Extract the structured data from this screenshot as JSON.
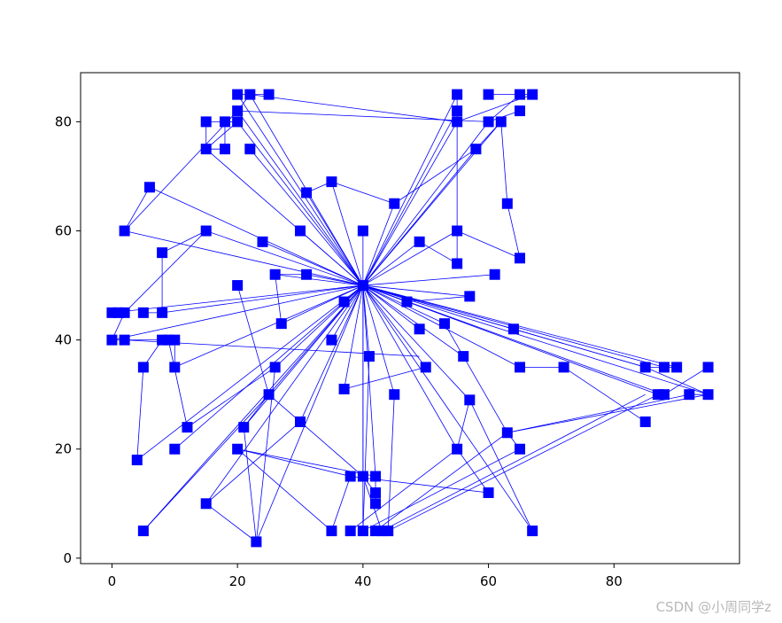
{
  "chart_data": {
    "type": "scatter",
    "title": "",
    "xlabel": "",
    "ylabel": "",
    "xlim": [
      -5,
      100
    ],
    "ylim": [
      -1,
      89
    ],
    "x_ticks": [
      0,
      20,
      40,
      60,
      80
    ],
    "y_ticks": [
      0,
      20,
      40,
      60,
      80
    ],
    "x_tick_labels": [
      "0",
      "20",
      "40",
      "60",
      "80"
    ],
    "y_tick_labels": [
      "0",
      "20",
      "40",
      "60",
      "80"
    ],
    "grid": false,
    "legend": "none",
    "marker": "square",
    "color": "#0000ff",
    "points": [
      [
        40,
        50
      ],
      [
        20,
        85
      ],
      [
        22,
        85
      ],
      [
        25,
        85
      ],
      [
        20,
        82
      ],
      [
        15,
        80
      ],
      [
        18,
        80
      ],
      [
        20,
        80
      ],
      [
        15,
        75
      ],
      [
        18,
        75
      ],
      [
        22,
        75
      ],
      [
        55,
        85
      ],
      [
        60,
        85
      ],
      [
        65,
        85
      ],
      [
        67,
        85
      ],
      [
        55,
        82
      ],
      [
        65,
        82
      ],
      [
        55,
        80
      ],
      [
        60,
        80
      ],
      [
        62,
        80
      ],
      [
        58,
        75
      ],
      [
        6,
        68
      ],
      [
        31,
        67
      ],
      [
        35,
        69
      ],
      [
        45,
        65
      ],
      [
        63,
        65
      ],
      [
        2,
        60
      ],
      [
        15,
        60
      ],
      [
        30,
        60
      ],
      [
        40,
        60
      ],
      [
        55,
        60
      ],
      [
        24,
        58
      ],
      [
        49,
        58
      ],
      [
        8,
        56
      ],
      [
        65,
        55
      ],
      [
        55,
        54
      ],
      [
        26,
        52
      ],
      [
        31,
        52
      ],
      [
        61,
        52
      ],
      [
        20,
        50
      ],
      [
        57,
        48
      ],
      [
        37,
        47
      ],
      [
        47,
        47
      ],
      [
        0,
        45
      ],
      [
        1,
        45
      ],
      [
        2,
        45
      ],
      [
        5,
        45
      ],
      [
        8,
        45
      ],
      [
        27,
        43
      ],
      [
        53,
        43
      ],
      [
        49,
        42
      ],
      [
        64,
        42
      ],
      [
        0,
        40
      ],
      [
        2,
        40
      ],
      [
        8,
        40
      ],
      [
        9,
        40
      ],
      [
        10,
        40
      ],
      [
        35,
        40
      ],
      [
        56,
        37
      ],
      [
        41,
        37
      ],
      [
        5,
        35
      ],
      [
        10,
        35
      ],
      [
        26,
        35
      ],
      [
        50,
        35
      ],
      [
        65,
        35
      ],
      [
        72,
        35
      ],
      [
        85,
        35
      ],
      [
        88,
        35
      ],
      [
        90,
        35
      ],
      [
        95,
        35
      ],
      [
        37,
        31
      ],
      [
        25,
        30
      ],
      [
        45,
        30
      ],
      [
        57,
        29
      ],
      [
        87,
        30
      ],
      [
        88,
        30
      ],
      [
        92,
        30
      ],
      [
        95,
        30
      ],
      [
        85,
        25
      ],
      [
        30,
        25
      ],
      [
        12,
        24
      ],
      [
        21,
        24
      ],
      [
        63,
        23
      ],
      [
        10,
        20
      ],
      [
        20,
        20
      ],
      [
        55,
        20
      ],
      [
        65,
        20
      ],
      [
        4,
        18
      ],
      [
        38,
        15
      ],
      [
        40,
        15
      ],
      [
        42,
        15
      ],
      [
        42,
        12
      ],
      [
        60,
        12
      ],
      [
        42,
        10
      ],
      [
        15,
        10
      ],
      [
        5,
        5
      ],
      [
        35,
        5
      ],
      [
        38,
        5
      ],
      [
        40,
        5
      ],
      [
        42,
        5
      ],
      [
        43,
        5
      ],
      [
        44,
        5
      ],
      [
        67,
        5
      ],
      [
        23,
        3
      ]
    ],
    "edges": [
      [
        40,
        50,
        20,
        85
      ],
      [
        40,
        50,
        22,
        85
      ],
      [
        40,
        50,
        20,
        82
      ],
      [
        40,
        50,
        20,
        80
      ],
      [
        40,
        50,
        22,
        75
      ],
      [
        40,
        50,
        15,
        75
      ],
      [
        40,
        50,
        55,
        85
      ],
      [
        40,
        50,
        55,
        82
      ],
      [
        40,
        50,
        55,
        80
      ],
      [
        40,
        50,
        60,
        80
      ],
      [
        40,
        50,
        62,
        80
      ],
      [
        40,
        50,
        58,
        75
      ],
      [
        40,
        50,
        6,
        68
      ],
      [
        40,
        50,
        31,
        67
      ],
      [
        40,
        50,
        35,
        69
      ],
      [
        40,
        50,
        45,
        65
      ],
      [
        40,
        50,
        2,
        60
      ],
      [
        40,
        50,
        15,
        60
      ],
      [
        40,
        50,
        30,
        60
      ],
      [
        40,
        50,
        40,
        60
      ],
      [
        40,
        50,
        55,
        60
      ],
      [
        40,
        50,
        24,
        58
      ],
      [
        40,
        50,
        49,
        58
      ],
      [
        40,
        50,
        26,
        52
      ],
      [
        40,
        50,
        31,
        52
      ],
      [
        40,
        50,
        61,
        52
      ],
      [
        40,
        50,
        57,
        48
      ],
      [
        40,
        50,
        37,
        47
      ],
      [
        40,
        50,
        47,
        47
      ],
      [
        40,
        50,
        0,
        45
      ],
      [
        40,
        50,
        8,
        45
      ],
      [
        40,
        50,
        27,
        43
      ],
      [
        40,
        50,
        53,
        43
      ],
      [
        40,
        50,
        49,
        42
      ],
      [
        40,
        50,
        64,
        42
      ],
      [
        40,
        50,
        0,
        40
      ],
      [
        40,
        50,
        10,
        35
      ],
      [
        40,
        50,
        35,
        40
      ],
      [
        40,
        50,
        56,
        37
      ],
      [
        40,
        50,
        41,
        37
      ],
      [
        40,
        50,
        37,
        31
      ],
      [
        40,
        50,
        25,
        30
      ],
      [
        40,
        50,
        45,
        30
      ],
      [
        40,
        50,
        57,
        29
      ],
      [
        40,
        50,
        30,
        25
      ],
      [
        40,
        50,
        21,
        24
      ],
      [
        40,
        50,
        10,
        20
      ],
      [
        40,
        50,
        55,
        20
      ],
      [
        40,
        50,
        4,
        18
      ],
      [
        40,
        50,
        40,
        15
      ],
      [
        40,
        50,
        42,
        15
      ],
      [
        40,
        50,
        15,
        10
      ],
      [
        40,
        50,
        5,
        5
      ],
      [
        40,
        50,
        40,
        5
      ],
      [
        40,
        50,
        67,
        5
      ],
      [
        40,
        50,
        23,
        3
      ],
      [
        40,
        50,
        85,
        35
      ],
      [
        40,
        50,
        88,
        35
      ],
      [
        40,
        50,
        87,
        30
      ],
      [
        40,
        50,
        95,
        30
      ],
      [
        40,
        50,
        88,
        30
      ],
      [
        40,
        50,
        90,
        35
      ],
      [
        40,
        50,
        65,
        35
      ],
      [
        40,
        50,
        50,
        35
      ],
      [
        40,
        50,
        26,
        35
      ],
      [
        20,
        85,
        25,
        85
      ],
      [
        22,
        85,
        55,
        80
      ],
      [
        20,
        82,
        60,
        80
      ],
      [
        15,
        80,
        18,
        80
      ],
      [
        18,
        80,
        20,
        80
      ],
      [
        20,
        80,
        15,
        75
      ],
      [
        20,
        82,
        2,
        60
      ],
      [
        15,
        80,
        15,
        75
      ],
      [
        18,
        80,
        18,
        75
      ],
      [
        22,
        85,
        20,
        82
      ],
      [
        18,
        75,
        15,
        75
      ],
      [
        55,
        85,
        55,
        82
      ],
      [
        60,
        85,
        65,
        85
      ],
      [
        65,
        85,
        67,
        85
      ],
      [
        65,
        85,
        60,
        80
      ],
      [
        55,
        82,
        55,
        80
      ],
      [
        65,
        82,
        60,
        80
      ],
      [
        62,
        80,
        58,
        75
      ],
      [
        62,
        80,
        63,
        65
      ],
      [
        63,
        65,
        65,
        55
      ],
      [
        65,
        55,
        55,
        60
      ],
      [
        55,
        60,
        55,
        54
      ],
      [
        55,
        80,
        55,
        60
      ],
      [
        67,
        85,
        55,
        80
      ],
      [
        58,
        75,
        45,
        65
      ],
      [
        8,
        56,
        8,
        45
      ],
      [
        8,
        56,
        15,
        60
      ],
      [
        0,
        45,
        2,
        45
      ],
      [
        2,
        45,
        0,
        40
      ],
      [
        2,
        45,
        15,
        60
      ],
      [
        5,
        45,
        8,
        45
      ],
      [
        0,
        40,
        2,
        40
      ],
      [
        2,
        40,
        8,
        40
      ],
      [
        8,
        40,
        9,
        40
      ],
      [
        9,
        40,
        10,
        40
      ],
      [
        10,
        40,
        10,
        35
      ],
      [
        8,
        40,
        5,
        35
      ],
      [
        5,
        35,
        4,
        18
      ],
      [
        9,
        40,
        12,
        24
      ],
      [
        2,
        40,
        49,
        37
      ],
      [
        26,
        52,
        27,
        43
      ],
      [
        20,
        50,
        25,
        30
      ],
      [
        25,
        30,
        30,
        25
      ],
      [
        25,
        30,
        21,
        24
      ],
      [
        25,
        30,
        5,
        5
      ],
      [
        30,
        25,
        40,
        15
      ],
      [
        21,
        24,
        23,
        3
      ],
      [
        20,
        20,
        38,
        15
      ],
      [
        38,
        15,
        60,
        12
      ],
      [
        20,
        20,
        42,
        15
      ],
      [
        15,
        10,
        23,
        3
      ],
      [
        15,
        10,
        30,
        25
      ],
      [
        12,
        24,
        26,
        35
      ],
      [
        40,
        15,
        42,
        12
      ],
      [
        42,
        12,
        42,
        10
      ],
      [
        42,
        10,
        42,
        15
      ],
      [
        35,
        5,
        20,
        20
      ],
      [
        35,
        5,
        38,
        15
      ],
      [
        38,
        5,
        55,
        20
      ],
      [
        40,
        5,
        65,
        20
      ],
      [
        42,
        5,
        63,
        23
      ],
      [
        43,
        5,
        85,
        30
      ],
      [
        44,
        5,
        87,
        30
      ],
      [
        44,
        5,
        45,
        30
      ],
      [
        43,
        5,
        40,
        15
      ],
      [
        55,
        20,
        60,
        12
      ],
      [
        63,
        23,
        95,
        30
      ],
      [
        63,
        23,
        92,
        30
      ],
      [
        63,
        23,
        65,
        20
      ],
      [
        53,
        43,
        56,
        37
      ],
      [
        56,
        37,
        63,
        23
      ],
      [
        57,
        29,
        67,
        5
      ],
      [
        57,
        29,
        55,
        20
      ],
      [
        65,
        35,
        72,
        35
      ],
      [
        64,
        42,
        85,
        35
      ],
      [
        85,
        25,
        72,
        35
      ],
      [
        85,
        35,
        95,
        30
      ],
      [
        95,
        35,
        88,
        30
      ],
      [
        88,
        35,
        90,
        35
      ],
      [
        85,
        35,
        88,
        35
      ],
      [
        87,
        30,
        88,
        30
      ],
      [
        92,
        30,
        95,
        30
      ],
      [
        37,
        31,
        50,
        35
      ],
      [
        47,
        47,
        57,
        48
      ],
      [
        49,
        58,
        55,
        54
      ],
      [
        41,
        37,
        40,
        5
      ],
      [
        26,
        52,
        31,
        52
      ],
      [
        31,
        67,
        35,
        69
      ],
      [
        6,
        68,
        2,
        60
      ],
      [
        45,
        65,
        35,
        69
      ],
      [
        23,
        3,
        26,
        35
      ]
    ]
  },
  "watermark": "CSDN @小周同学z"
}
